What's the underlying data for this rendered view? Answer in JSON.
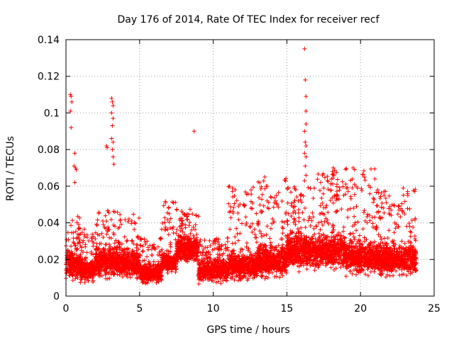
{
  "chart_data": {
    "type": "scatter",
    "title": "Day 176 of 2014, Rate Of TEC Index for receiver recf",
    "xlabel": "GPS time / hours",
    "ylabel": "ROTI / TECUs",
    "xlim": [
      0,
      25
    ],
    "ylim": [
      0,
      0.14
    ],
    "xticks": [
      0,
      5,
      10,
      15,
      20,
      25
    ],
    "xtick_labels": [
      "0",
      "5",
      "10",
      "15",
      "20",
      "25"
    ],
    "yticks": [
      0,
      0.02,
      0.04,
      0.06,
      0.08,
      0.1,
      0.12,
      0.14
    ],
    "ytick_labels": [
      "0",
      "0.02",
      "0.04",
      "0.06",
      "0.08",
      "0.1",
      "0.12",
      "0.14"
    ],
    "grid": true,
    "marker": "+",
    "color": "#ff0000",
    "x_data_range": [
      0,
      23.8
    ],
    "series": [
      {
        "name": "ROTI",
        "outliers": [
          [
            0.3,
            0.11
          ],
          [
            0.35,
            0.109
          ],
          [
            0.4,
            0.106
          ],
          [
            0.3,
            0.101
          ],
          [
            0.35,
            0.092
          ],
          [
            0.6,
            0.078
          ],
          [
            0.55,
            0.071
          ],
          [
            0.65,
            0.07
          ],
          [
            0.7,
            0.069
          ],
          [
            0.6,
            0.062
          ],
          [
            2.75,
            0.082
          ],
          [
            2.8,
            0.081
          ],
          [
            3.1,
            0.108
          ],
          [
            3.15,
            0.106
          ],
          [
            3.2,
            0.104
          ],
          [
            3.1,
            0.1
          ],
          [
            3.2,
            0.097
          ],
          [
            3.15,
            0.093
          ],
          [
            3.1,
            0.086
          ],
          [
            3.2,
            0.084
          ],
          [
            3.15,
            0.08
          ],
          [
            3.2,
            0.076
          ],
          [
            3.25,
            0.072
          ],
          [
            8.7,
            0.09
          ],
          [
            11.1,
            0.06
          ],
          [
            11.3,
            0.059
          ],
          [
            13.5,
            0.065
          ],
          [
            13.6,
            0.06
          ],
          [
            15.6,
            0.058
          ],
          [
            16.2,
            0.135
          ],
          [
            16.25,
            0.118
          ],
          [
            16.3,
            0.109
          ],
          [
            16.3,
            0.101
          ],
          [
            16.3,
            0.094
          ],
          [
            16.2,
            0.09
          ],
          [
            16.25,
            0.084
          ],
          [
            16.3,
            0.082
          ],
          [
            16.2,
            0.078
          ],
          [
            16.3,
            0.076
          ],
          [
            16.25,
            0.071
          ],
          [
            16.3,
            0.066
          ],
          [
            16.2,
            0.063
          ],
          [
            17.3,
            0.062
          ],
          [
            17.5,
            0.059
          ],
          [
            18.1,
            0.068
          ],
          [
            18.15,
            0.07
          ],
          [
            18.2,
            0.066
          ],
          [
            18.4,
            0.061
          ],
          [
            19.5,
            0.07
          ],
          [
            19.6,
            0.069
          ],
          [
            19.7,
            0.06
          ],
          [
            19.8,
            0.059
          ],
          [
            21.6,
            0.055
          ],
          [
            22.9,
            0.059
          ],
          [
            23.2,
            0.056
          ]
        ],
        "envelope": [
          {
            "x_start": 0.0,
            "x_end": 1.0,
            "base": 0.012,
            "spread": 0.014,
            "peak": 0.045
          },
          {
            "x_start": 1.0,
            "x_end": 2.0,
            "base": 0.012,
            "spread": 0.01,
            "peak": 0.037
          },
          {
            "x_start": 2.0,
            "x_end": 3.5,
            "base": 0.014,
            "spread": 0.014,
            "peak": 0.048
          },
          {
            "x_start": 3.5,
            "x_end": 5.0,
            "base": 0.014,
            "spread": 0.012,
            "peak": 0.045
          },
          {
            "x_start": 5.0,
            "x_end": 6.5,
            "base": 0.012,
            "spread": 0.008,
            "peak": 0.032
          },
          {
            "x_start": 6.5,
            "x_end": 7.5,
            "base": 0.018,
            "spread": 0.008,
            "peak": 0.052
          },
          {
            "x_start": 7.5,
            "x_end": 9.0,
            "base": 0.022,
            "spread": 0.012,
            "peak": 0.048
          },
          {
            "x_start": 9.0,
            "x_end": 11.0,
            "base": 0.012,
            "spread": 0.01,
            "peak": 0.032
          },
          {
            "x_start": 11.0,
            "x_end": 13.0,
            "base": 0.013,
            "spread": 0.012,
            "peak": 0.06
          },
          {
            "x_start": 13.0,
            "x_end": 15.0,
            "base": 0.014,
            "spread": 0.014,
            "peak": 0.065
          },
          {
            "x_start": 15.0,
            "x_end": 17.0,
            "base": 0.018,
            "spread": 0.016,
            "peak": 0.06
          },
          {
            "x_start": 17.0,
            "x_end": 19.0,
            "base": 0.018,
            "spread": 0.016,
            "peak": 0.07
          },
          {
            "x_start": 19.0,
            "x_end": 21.0,
            "base": 0.016,
            "spread": 0.014,
            "peak": 0.07
          },
          {
            "x_start": 21.0,
            "x_end": 23.8,
            "base": 0.015,
            "spread": 0.014,
            "peak": 0.059
          }
        ]
      }
    ]
  }
}
